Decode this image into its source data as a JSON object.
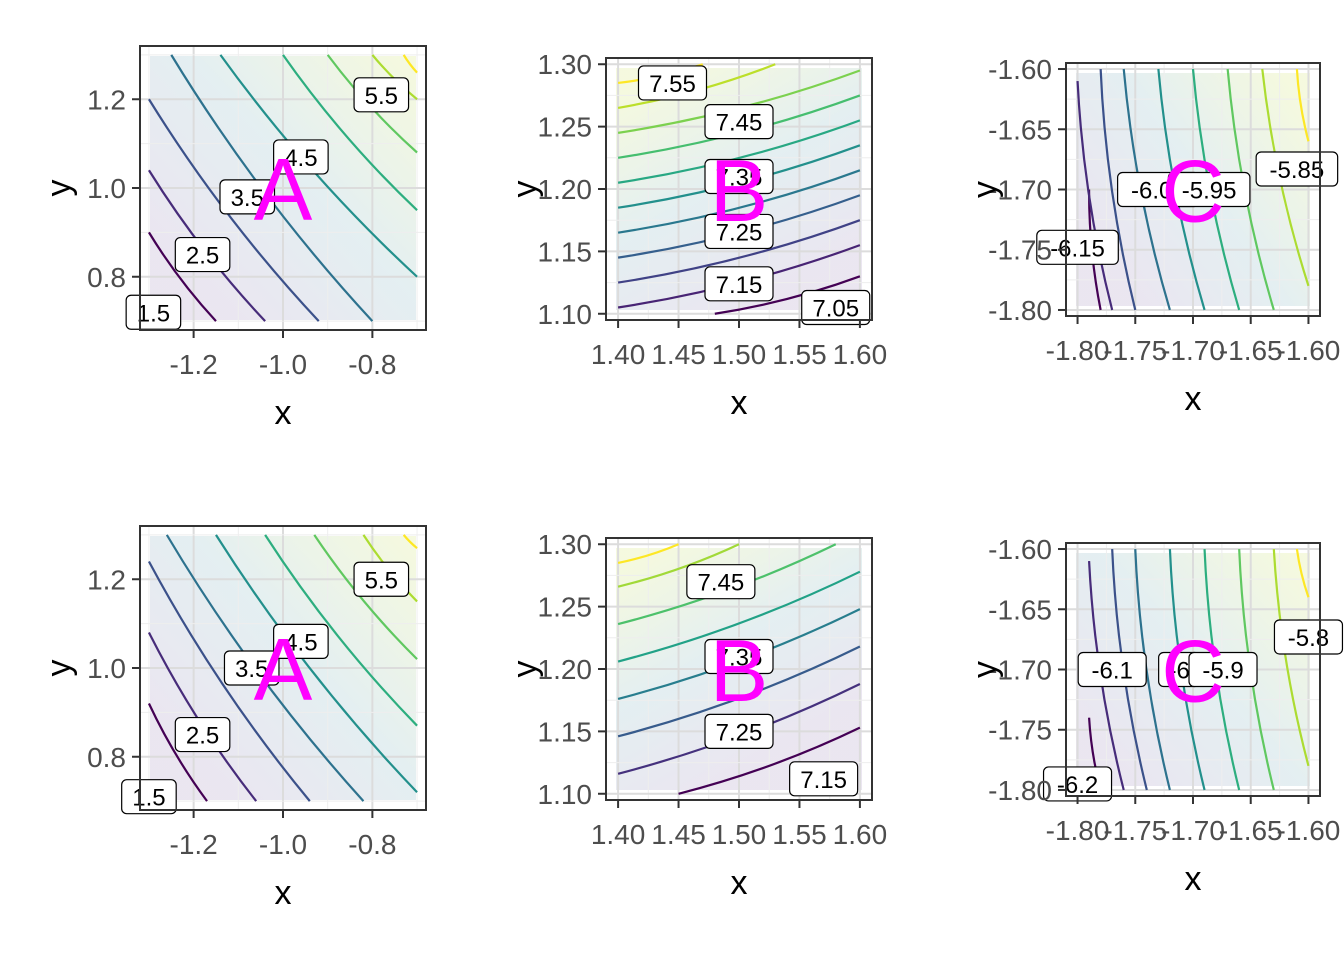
{
  "colors": {
    "background": "#ffffff",
    "panel_border": "#333333",
    "grid_major": "#dcdcdc",
    "grid_minor": "#eeeeee",
    "tick_text": "#4d4d4d",
    "axis_title": "#000000",
    "letter": "#ff00ff",
    "viridis": [
      "#440154",
      "#482878",
      "#3e4989",
      "#31688e",
      "#26828e",
      "#1f9e89",
      "#35b779",
      "#6ece58",
      "#b5de2b",
      "#fde725"
    ]
  },
  "chart_data": [
    {
      "type": "contour",
      "letter": "A",
      "xlabel": "x",
      "ylabel": "y",
      "xlim": [
        -1.32,
        -0.68
      ],
      "ylim": [
        0.68,
        1.32
      ],
      "xticks": [
        -1.2,
        -1.0,
        -0.8
      ],
      "xtick_labels": [
        "-1.2",
        "-1.0",
        "-0.8"
      ],
      "yticks": [
        0.8,
        1.0,
        1.2
      ],
      "ytick_labels": [
        "0.8",
        "1.0",
        "1.2"
      ],
      "grid": true,
      "levels": [
        {
          "level": "1.5",
          "points": [
            [
              -1.3,
              0.9
            ],
            [
              -1.15,
              0.7
            ]
          ]
        },
        {
          "level": "2.0",
          "points": [
            [
              -1.3,
              1.04
            ],
            [
              -1.04,
              0.7
            ]
          ]
        },
        {
          "level": "2.5",
          "points": [
            [
              -1.3,
              1.2
            ],
            [
              -0.92,
              0.7
            ]
          ]
        },
        {
          "level": "3.0",
          "points": [
            [
              -1.25,
              1.3
            ],
            [
              -0.8,
              0.7
            ]
          ]
        },
        {
          "level": "3.5",
          "points": [
            [
              -1.14,
              1.3
            ],
            [
              -0.7,
              0.8
            ]
          ]
        },
        {
          "level": "4.0",
          "points": [
            [
              -1.0,
              1.3
            ],
            [
              -0.7,
              0.95
            ]
          ]
        },
        {
          "level": "4.5",
          "points": [
            [
              -0.9,
              1.3
            ],
            [
              -0.7,
              1.08
            ]
          ]
        },
        {
          "level": "5.0",
          "points": [
            [
              -0.8,
              1.3
            ],
            [
              -0.7,
              1.2
            ]
          ]
        },
        {
          "level": "5.5",
          "points": [
            [
              -0.73,
              1.3
            ],
            [
              -0.7,
              1.26
            ]
          ]
        }
      ],
      "labels": [
        {
          "text": "1.5",
          "x": -1.29,
          "y": 0.72
        },
        {
          "text": "2.5",
          "x": -1.18,
          "y": 0.85
        },
        {
          "text": "3.5",
          "x": -1.08,
          "y": 0.98
        },
        {
          "text": "4.5",
          "x": -0.96,
          "y": 1.07
        },
        {
          "text": "5.5",
          "x": -0.78,
          "y": 1.21
        }
      ]
    },
    {
      "type": "contour",
      "letter": "B",
      "xlabel": "x",
      "ylabel": "y",
      "xlim": [
        1.39,
        1.61
      ],
      "ylim": [
        1.095,
        1.305
      ],
      "xticks": [
        1.4,
        1.45,
        1.5,
        1.55,
        1.6
      ],
      "xtick_labels": [
        "1.40",
        "1.45",
        "1.50",
        "1.55",
        "1.60"
      ],
      "yticks": [
        1.1,
        1.15,
        1.2,
        1.25,
        1.3
      ],
      "ytick_labels": [
        "1.10",
        "1.15",
        "1.20",
        "1.25",
        "1.30"
      ],
      "grid": true,
      "levels": [
        {
          "level": "7.05",
          "points": [
            [
              1.48,
              1.1
            ],
            [
              1.6,
              1.13
            ]
          ]
        },
        {
          "level": "7.10",
          "points": [
            [
              1.4,
              1.105
            ],
            [
              1.6,
              1.155
            ]
          ]
        },
        {
          "level": "7.15",
          "points": [
            [
              1.4,
              1.125
            ],
            [
              1.6,
              1.175
            ]
          ]
        },
        {
          "level": "7.20",
          "points": [
            [
              1.4,
              1.145
            ],
            [
              1.6,
              1.195
            ]
          ]
        },
        {
          "level": "7.25",
          "points": [
            [
              1.4,
              1.165
            ],
            [
              1.6,
              1.215
            ]
          ]
        },
        {
          "level": "7.30",
          "points": [
            [
              1.4,
              1.185
            ],
            [
              1.6,
              1.235
            ]
          ]
        },
        {
          "level": "7.35",
          "points": [
            [
              1.4,
              1.205
            ],
            [
              1.6,
              1.255
            ]
          ]
        },
        {
          "level": "7.40",
          "points": [
            [
              1.4,
              1.225
            ],
            [
              1.6,
              1.275
            ]
          ]
        },
        {
          "level": "7.45",
          "points": [
            [
              1.4,
              1.245
            ],
            [
              1.6,
              1.295
            ]
          ]
        },
        {
          "level": "7.50",
          "points": [
            [
              1.4,
              1.265
            ],
            [
              1.53,
              1.3
            ]
          ]
        },
        {
          "level": "7.55",
          "points": [
            [
              1.4,
              1.285
            ],
            [
              1.47,
              1.3
            ]
          ]
        }
      ],
      "labels": [
        {
          "text": "7.55",
          "x": 1.445,
          "y": 1.285
        },
        {
          "text": "7.45",
          "x": 1.5,
          "y": 1.254
        },
        {
          "text": "7.35",
          "x": 1.5,
          "y": 1.21
        },
        {
          "text": "7.25",
          "x": 1.5,
          "y": 1.166
        },
        {
          "text": "7.15",
          "x": 1.5,
          "y": 1.124
        },
        {
          "text": "7.05",
          "x": 1.58,
          "y": 1.105
        }
      ]
    },
    {
      "type": "contour",
      "letter": "C",
      "xlabel": "x",
      "ylabel": "y",
      "xlim": [
        -1.81,
        -1.59
      ],
      "ylim": [
        -1.805,
        -1.595
      ],
      "xticks": [
        -1.8,
        -1.75,
        -1.7,
        -1.65,
        -1.6
      ],
      "xtick_labels": [
        "-1.80",
        "-1.75",
        "-1.70",
        "-1.65",
        "-1.60"
      ],
      "yticks": [
        -1.8,
        -1.75,
        -1.7,
        -1.65,
        -1.6
      ],
      "ytick_labels": [
        "-1.80",
        "-1.75",
        "-1.70",
        "-1.65",
        "-1.60"
      ],
      "grid": true,
      "levels": [
        {
          "level": "-6.15",
          "points": [
            [
              -1.79,
              -1.7
            ],
            [
              -1.78,
              -1.8
            ]
          ]
        },
        {
          "level": "-6.10",
          "points": [
            [
              -1.8,
              -1.61
            ],
            [
              -1.77,
              -1.8
            ]
          ]
        },
        {
          "level": "-6.05",
          "points": [
            [
              -1.78,
              -1.6
            ],
            [
              -1.75,
              -1.8
            ]
          ]
        },
        {
          "level": "-6.00",
          "points": [
            [
              -1.76,
              -1.6
            ],
            [
              -1.72,
              -1.8
            ]
          ]
        },
        {
          "level": "-5.95",
          "points": [
            [
              -1.73,
              -1.6
            ],
            [
              -1.69,
              -1.8
            ]
          ]
        },
        {
          "level": "-5.90",
          "points": [
            [
              -1.7,
              -1.6
            ],
            [
              -1.66,
              -1.8
            ]
          ]
        },
        {
          "level": "-5.85",
          "points": [
            [
              -1.67,
              -1.6
            ],
            [
              -1.63,
              -1.8
            ]
          ]
        },
        {
          "level": "-5.80",
          "points": [
            [
              -1.64,
              -1.6
            ],
            [
              -1.6,
              -1.78
            ]
          ]
        },
        {
          "level": "-5.75",
          "points": [
            [
              -1.61,
              -1.6
            ],
            [
              -1.6,
              -1.66
            ]
          ]
        }
      ],
      "labels": [
        {
          "text": "-6.15",
          "x": -1.8,
          "y": -1.748
        },
        {
          "text": "-6.05",
          "x": -1.73,
          "y": -1.7
        },
        {
          "text": "-5.95",
          "x": -1.686,
          "y": -1.7
        },
        {
          "text": "-5.85",
          "x": -1.61,
          "y": -1.683
        }
      ]
    },
    {
      "type": "contour",
      "letter": "A",
      "xlabel": "x",
      "ylabel": "y",
      "xlim": [
        -1.32,
        -0.68
      ],
      "ylim": [
        0.68,
        1.32
      ],
      "xticks": [
        -1.2,
        -1.0,
        -0.8
      ],
      "xtick_labels": [
        "-1.2",
        "-1.0",
        "-0.8"
      ],
      "yticks": [
        0.8,
        1.0,
        1.2
      ],
      "ytick_labels": [
        "0.8",
        "1.0",
        "1.2"
      ],
      "grid": true,
      "levels": [
        {
          "level": "1.5",
          "points": [
            [
              -1.3,
              0.92
            ],
            [
              -1.17,
              0.7
            ]
          ]
        },
        {
          "level": "2.0",
          "points": [
            [
              -1.3,
              1.08
            ],
            [
              -1.06,
              0.7
            ]
          ]
        },
        {
          "level": "2.5",
          "points": [
            [
              -1.3,
              1.24
            ],
            [
              -0.94,
              0.7
            ]
          ]
        },
        {
          "level": "3.0",
          "points": [
            [
              -1.26,
              1.3
            ],
            [
              -0.82,
              0.7
            ]
          ]
        },
        {
          "level": "3.5",
          "points": [
            [
              -1.15,
              1.3
            ],
            [
              -0.7,
              0.72
            ]
          ]
        },
        {
          "level": "4.0",
          "points": [
            [
              -1.04,
              1.3
            ],
            [
              -0.7,
              0.87
            ]
          ]
        },
        {
          "level": "4.5",
          "points": [
            [
              -0.93,
              1.3
            ],
            [
              -0.7,
              1.02
            ]
          ]
        },
        {
          "level": "5.0",
          "points": [
            [
              -0.82,
              1.3
            ],
            [
              -0.7,
              1.15
            ]
          ]
        },
        {
          "level": "5.5",
          "points": [
            [
              -0.73,
              1.3
            ],
            [
              -0.7,
              1.27
            ]
          ]
        }
      ],
      "labels": [
        {
          "text": "1.5",
          "x": -1.3,
          "y": 0.71
        },
        {
          "text": "2.5",
          "x": -1.18,
          "y": 0.85
        },
        {
          "text": "3.5",
          "x": -1.07,
          "y": 1.0
        },
        {
          "text": "4.5",
          "x": -0.96,
          "y": 1.06
        },
        {
          "text": "5.5",
          "x": -0.78,
          "y": 1.2
        }
      ]
    },
    {
      "type": "contour",
      "letter": "B",
      "xlabel": "x",
      "ylabel": "y",
      "xlim": [
        1.39,
        1.61
      ],
      "ylim": [
        1.095,
        1.305
      ],
      "xticks": [
        1.4,
        1.45,
        1.5,
        1.55,
        1.6
      ],
      "xtick_labels": [
        "1.40",
        "1.45",
        "1.50",
        "1.55",
        "1.60"
      ],
      "yticks": [
        1.1,
        1.15,
        1.2,
        1.25,
        1.3
      ],
      "ytick_labels": [
        "1.10",
        "1.15",
        "1.20",
        "1.25",
        "1.30"
      ],
      "grid": true,
      "levels": [
        {
          "level": "7.15",
          "points": [
            [
              1.45,
              1.1
            ],
            [
              1.6,
              1.153
            ]
          ]
        },
        {
          "level": "7.20",
          "points": [
            [
              1.4,
              1.116
            ],
            [
              1.6,
              1.188
            ]
          ]
        },
        {
          "level": "7.25",
          "points": [
            [
              1.4,
              1.146
            ],
            [
              1.6,
              1.218
            ]
          ]
        },
        {
          "level": "7.30",
          "points": [
            [
              1.4,
              1.176
            ],
            [
              1.6,
              1.248
            ]
          ]
        },
        {
          "level": "7.35",
          "points": [
            [
              1.4,
              1.206
            ],
            [
              1.6,
              1.278
            ]
          ]
        },
        {
          "level": "7.40",
          "points": [
            [
              1.4,
              1.236
            ],
            [
              1.58,
              1.3
            ]
          ]
        },
        {
          "level": "7.45",
          "points": [
            [
              1.4,
              1.266
            ],
            [
              1.5,
              1.3
            ]
          ]
        },
        {
          "level": "7.50",
          "points": [
            [
              1.4,
              1.285
            ],
            [
              1.45,
              1.3
            ]
          ]
        }
      ],
      "labels": [
        {
          "text": "7.45",
          "x": 1.485,
          "y": 1.27
        },
        {
          "text": "7.35",
          "x": 1.5,
          "y": 1.21
        },
        {
          "text": "7.25",
          "x": 1.5,
          "y": 1.15
        },
        {
          "text": "7.15",
          "x": 1.57,
          "y": 1.112
        }
      ]
    },
    {
      "type": "contour",
      "letter": "C",
      "xlabel": "x",
      "ylabel": "y",
      "xlim": [
        -1.81,
        -1.59
      ],
      "ylim": [
        -1.805,
        -1.595
      ],
      "xticks": [
        -1.8,
        -1.75,
        -1.7,
        -1.65,
        -1.6
      ],
      "xtick_labels": [
        "-1.80",
        "-1.75",
        "-1.70",
        "-1.65",
        "-1.60"
      ],
      "yticks": [
        -1.8,
        -1.75,
        -1.7,
        -1.65,
        -1.6
      ],
      "ytick_labels": [
        "-1.80",
        "-1.75",
        "-1.70",
        "-1.65",
        "-1.60"
      ],
      "grid": true,
      "levels": [
        {
          "level": "-6.20",
          "points": [
            [
              -1.79,
              -1.74
            ],
            [
              -1.78,
              -1.8
            ]
          ]
        },
        {
          "level": "-6.15",
          "points": [
            [
              -1.79,
              -1.61
            ],
            [
              -1.76,
              -1.8
            ]
          ]
        },
        {
          "level": "-6.10",
          "points": [
            [
              -1.77,
              -1.6
            ],
            [
              -1.74,
              -1.8
            ]
          ]
        },
        {
          "level": "-6.05",
          "points": [
            [
              -1.75,
              -1.6
            ],
            [
              -1.72,
              -1.8
            ]
          ]
        },
        {
          "level": "-6.00",
          "points": [
            [
              -1.72,
              -1.6
            ],
            [
              -1.69,
              -1.8
            ]
          ]
        },
        {
          "level": "-5.95",
          "points": [
            [
              -1.69,
              -1.6
            ],
            [
              -1.66,
              -1.8
            ]
          ]
        },
        {
          "level": "-5.90",
          "points": [
            [
              -1.66,
              -1.6
            ],
            [
              -1.63,
              -1.8
            ]
          ]
        },
        {
          "level": "-5.85",
          "points": [
            [
              -1.63,
              -1.6
            ],
            [
              -1.6,
              -1.78
            ]
          ]
        },
        {
          "level": "-5.80",
          "points": [
            [
              -1.61,
              -1.6
            ],
            [
              -1.6,
              -1.64
            ]
          ]
        }
      ],
      "labels": [
        {
          "text": "-6.2",
          "x": -1.8,
          "y": -1.795
        },
        {
          "text": "-6.1",
          "x": -1.77,
          "y": -1.7
        },
        {
          "text": "-6",
          "x": -1.712,
          "y": -1.7
        },
        {
          "text": "-5.9",
          "x": -1.674,
          "y": -1.7
        },
        {
          "text": "-5.8",
          "x": -1.6,
          "y": -1.673
        }
      ]
    }
  ]
}
